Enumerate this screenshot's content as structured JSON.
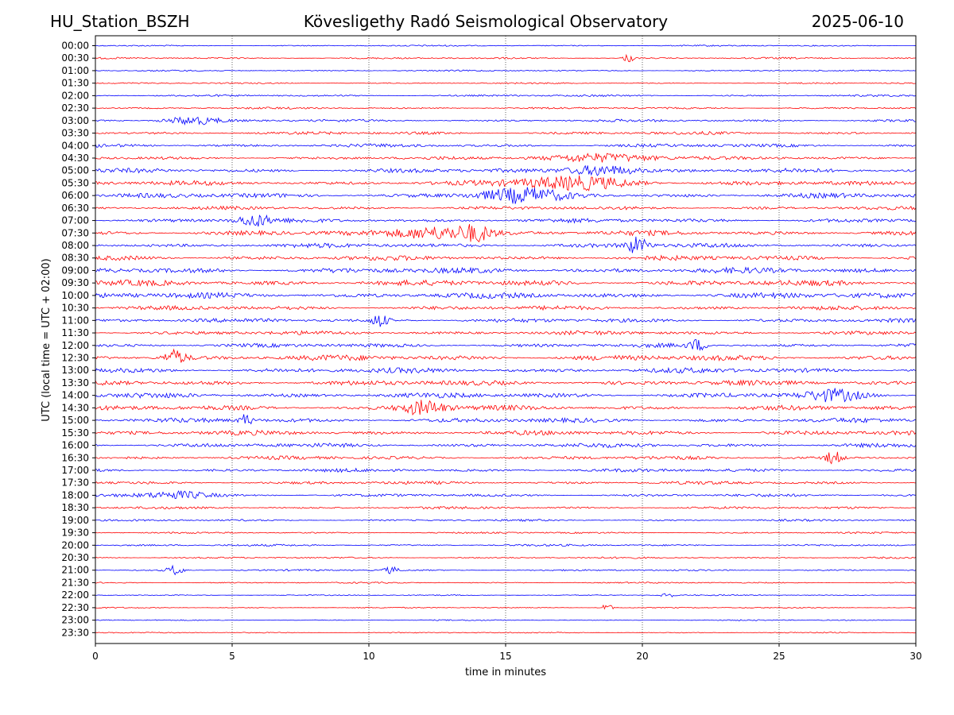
{
  "header": {
    "station": "HU_Station_BSZH",
    "observatory": "Kövesligethy Radó Seismological Observatory",
    "date": "2025-06-10"
  },
  "chart_data": {
    "type": "line",
    "subtype": "helicorder",
    "xlabel": "time in minutes",
    "ylabel": "UTC (local time = UTC + 02:00)",
    "xlim": [
      0,
      30
    ],
    "xticks": [
      0,
      5,
      10,
      15,
      20,
      25,
      30
    ],
    "row_labels": [
      "00:00",
      "00:30",
      "01:00",
      "01:30",
      "02:00",
      "02:30",
      "03:00",
      "03:30",
      "04:00",
      "04:30",
      "05:00",
      "05:30",
      "06:00",
      "06:30",
      "07:00",
      "07:30",
      "08:00",
      "08:30",
      "09:00",
      "09:30",
      "10:00",
      "10:30",
      "11:00",
      "11:30",
      "12:00",
      "12:30",
      "13:00",
      "13:30",
      "14:00",
      "14:30",
      "15:00",
      "15:30",
      "16:00",
      "16:30",
      "17:00",
      "17:30",
      "18:00",
      "18:30",
      "19:00",
      "19:30",
      "20:00",
      "20:30",
      "21:00",
      "21:30",
      "22:00",
      "22:30",
      "23:00",
      "23:30"
    ],
    "colors": [
      "#0000ff",
      "#ff0000"
    ],
    "noise_level": [
      1,
      1.2,
      1,
      1,
      1.4,
      1.4,
      1.8,
      2.2,
      2.4,
      2.2,
      3,
      3.2,
      3.4,
      2.4,
      3,
      3.4,
      3.2,
      3.4,
      4,
      4,
      4,
      3,
      2.8,
      2.8,
      2.8,
      4,
      3.6,
      3.6,
      3.6,
      3.4,
      3.2,
      3.2,
      3,
      2.6,
      2.4,
      2.2,
      2,
      1.8,
      1.4,
      1.2,
      1.4,
      1.2,
      1.2,
      1,
      0.8,
      0.8,
      0.8,
      0.8
    ],
    "events": [
      {
        "row": 1,
        "t": 19.5,
        "amp": 5,
        "dur": 0.2
      },
      {
        "row": 6,
        "t": 3.5,
        "amp": 5,
        "dur": 1.0
      },
      {
        "row": 9,
        "t": 18.5,
        "amp": 5,
        "dur": 2.2
      },
      {
        "row": 10,
        "t": 18.5,
        "amp": 7,
        "dur": 1.2
      },
      {
        "row": 11,
        "t": 17.5,
        "amp": 8,
        "dur": 2.0
      },
      {
        "row": 12,
        "t": 15.5,
        "amp": 8,
        "dur": 1.5
      },
      {
        "row": 14,
        "t": 5.8,
        "amp": 7,
        "dur": 0.6
      },
      {
        "row": 15,
        "t": 12.5,
        "amp": 8,
        "dur": 1.5
      },
      {
        "row": 15,
        "t": 13.9,
        "amp": 8,
        "dur": 0.6
      },
      {
        "row": 16,
        "t": 19.8,
        "amp": 10,
        "dur": 0.4
      },
      {
        "row": 22,
        "t": 10.4,
        "amp": 8,
        "dur": 0.3
      },
      {
        "row": 24,
        "t": 22.0,
        "amp": 7,
        "dur": 0.3
      },
      {
        "row": 25,
        "t": 2.9,
        "amp": 9,
        "dur": 0.4
      },
      {
        "row": 28,
        "t": 27.0,
        "amp": 6,
        "dur": 1.0
      },
      {
        "row": 29,
        "t": 12.0,
        "amp": 9,
        "dur": 0.8
      },
      {
        "row": 30,
        "t": 5.5,
        "amp": 8,
        "dur": 0.2
      },
      {
        "row": 33,
        "t": 27.0,
        "amp": 8,
        "dur": 0.3
      },
      {
        "row": 36,
        "t": 3.0,
        "amp": 5,
        "dur": 1.2
      },
      {
        "row": 42,
        "t": 2.9,
        "amp": 6,
        "dur": 0.3
      },
      {
        "row": 42,
        "t": 10.8,
        "amp": 4,
        "dur": 0.3
      },
      {
        "row": 44,
        "t": 20.9,
        "amp": 4,
        "dur": 0.2
      },
      {
        "row": 45,
        "t": 18.7,
        "amp": 5,
        "dur": 0.2
      }
    ]
  }
}
